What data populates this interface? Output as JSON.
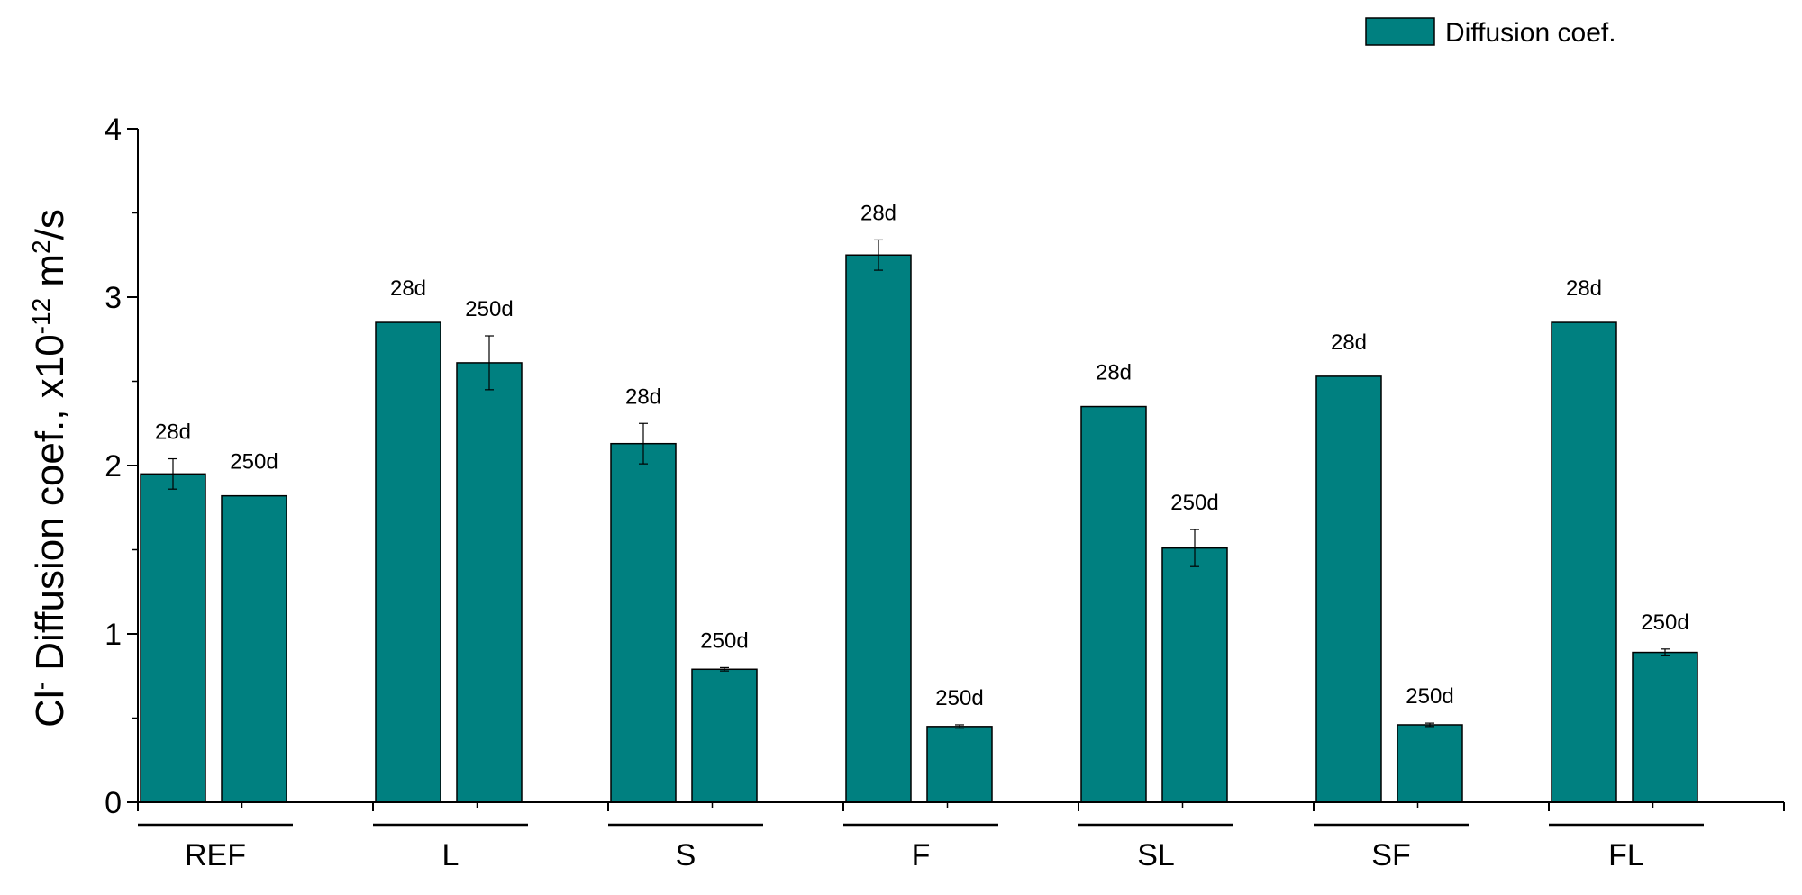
{
  "chart_data": {
    "type": "bar",
    "title": "",
    "categories": [
      "REF",
      "L",
      "S",
      "F",
      "SL",
      "SF",
      "FL"
    ],
    "bar_labels": [
      "28d",
      "250d"
    ],
    "series": [
      {
        "name": "Diffusion coef.",
        "color": "#008080",
        "values": [
          [
            1.95,
            1.82
          ],
          [
            2.85,
            2.61
          ],
          [
            2.13,
            0.79
          ],
          [
            3.25,
            0.45
          ],
          [
            2.35,
            1.51
          ],
          [
            2.53,
            0.46
          ],
          [
            2.85,
            0.89
          ]
        ],
        "errors": [
          [
            0.09,
            0.0
          ],
          [
            0.0,
            0.16
          ],
          [
            0.12,
            0.01
          ],
          [
            0.09,
            0.01
          ],
          [
            0.0,
            0.11
          ],
          [
            0.0,
            0.01
          ],
          [
            0.0,
            0.02
          ]
        ]
      }
    ],
    "xlabel": "",
    "ylabel": {
      "base": "Cl",
      "base_sup": "-",
      "mid": " Diffusion coef., x10",
      "mid_sup": "-12",
      "unit": " m",
      "unit_sup": "2",
      "tail": "/s"
    },
    "ylim": [
      0,
      4
    ],
    "yticks": [
      "0",
      "1",
      "2",
      "3",
      "4"
    ],
    "legend": {
      "position": "top-right",
      "label": "Diffusion coef."
    },
    "grid": false
  }
}
